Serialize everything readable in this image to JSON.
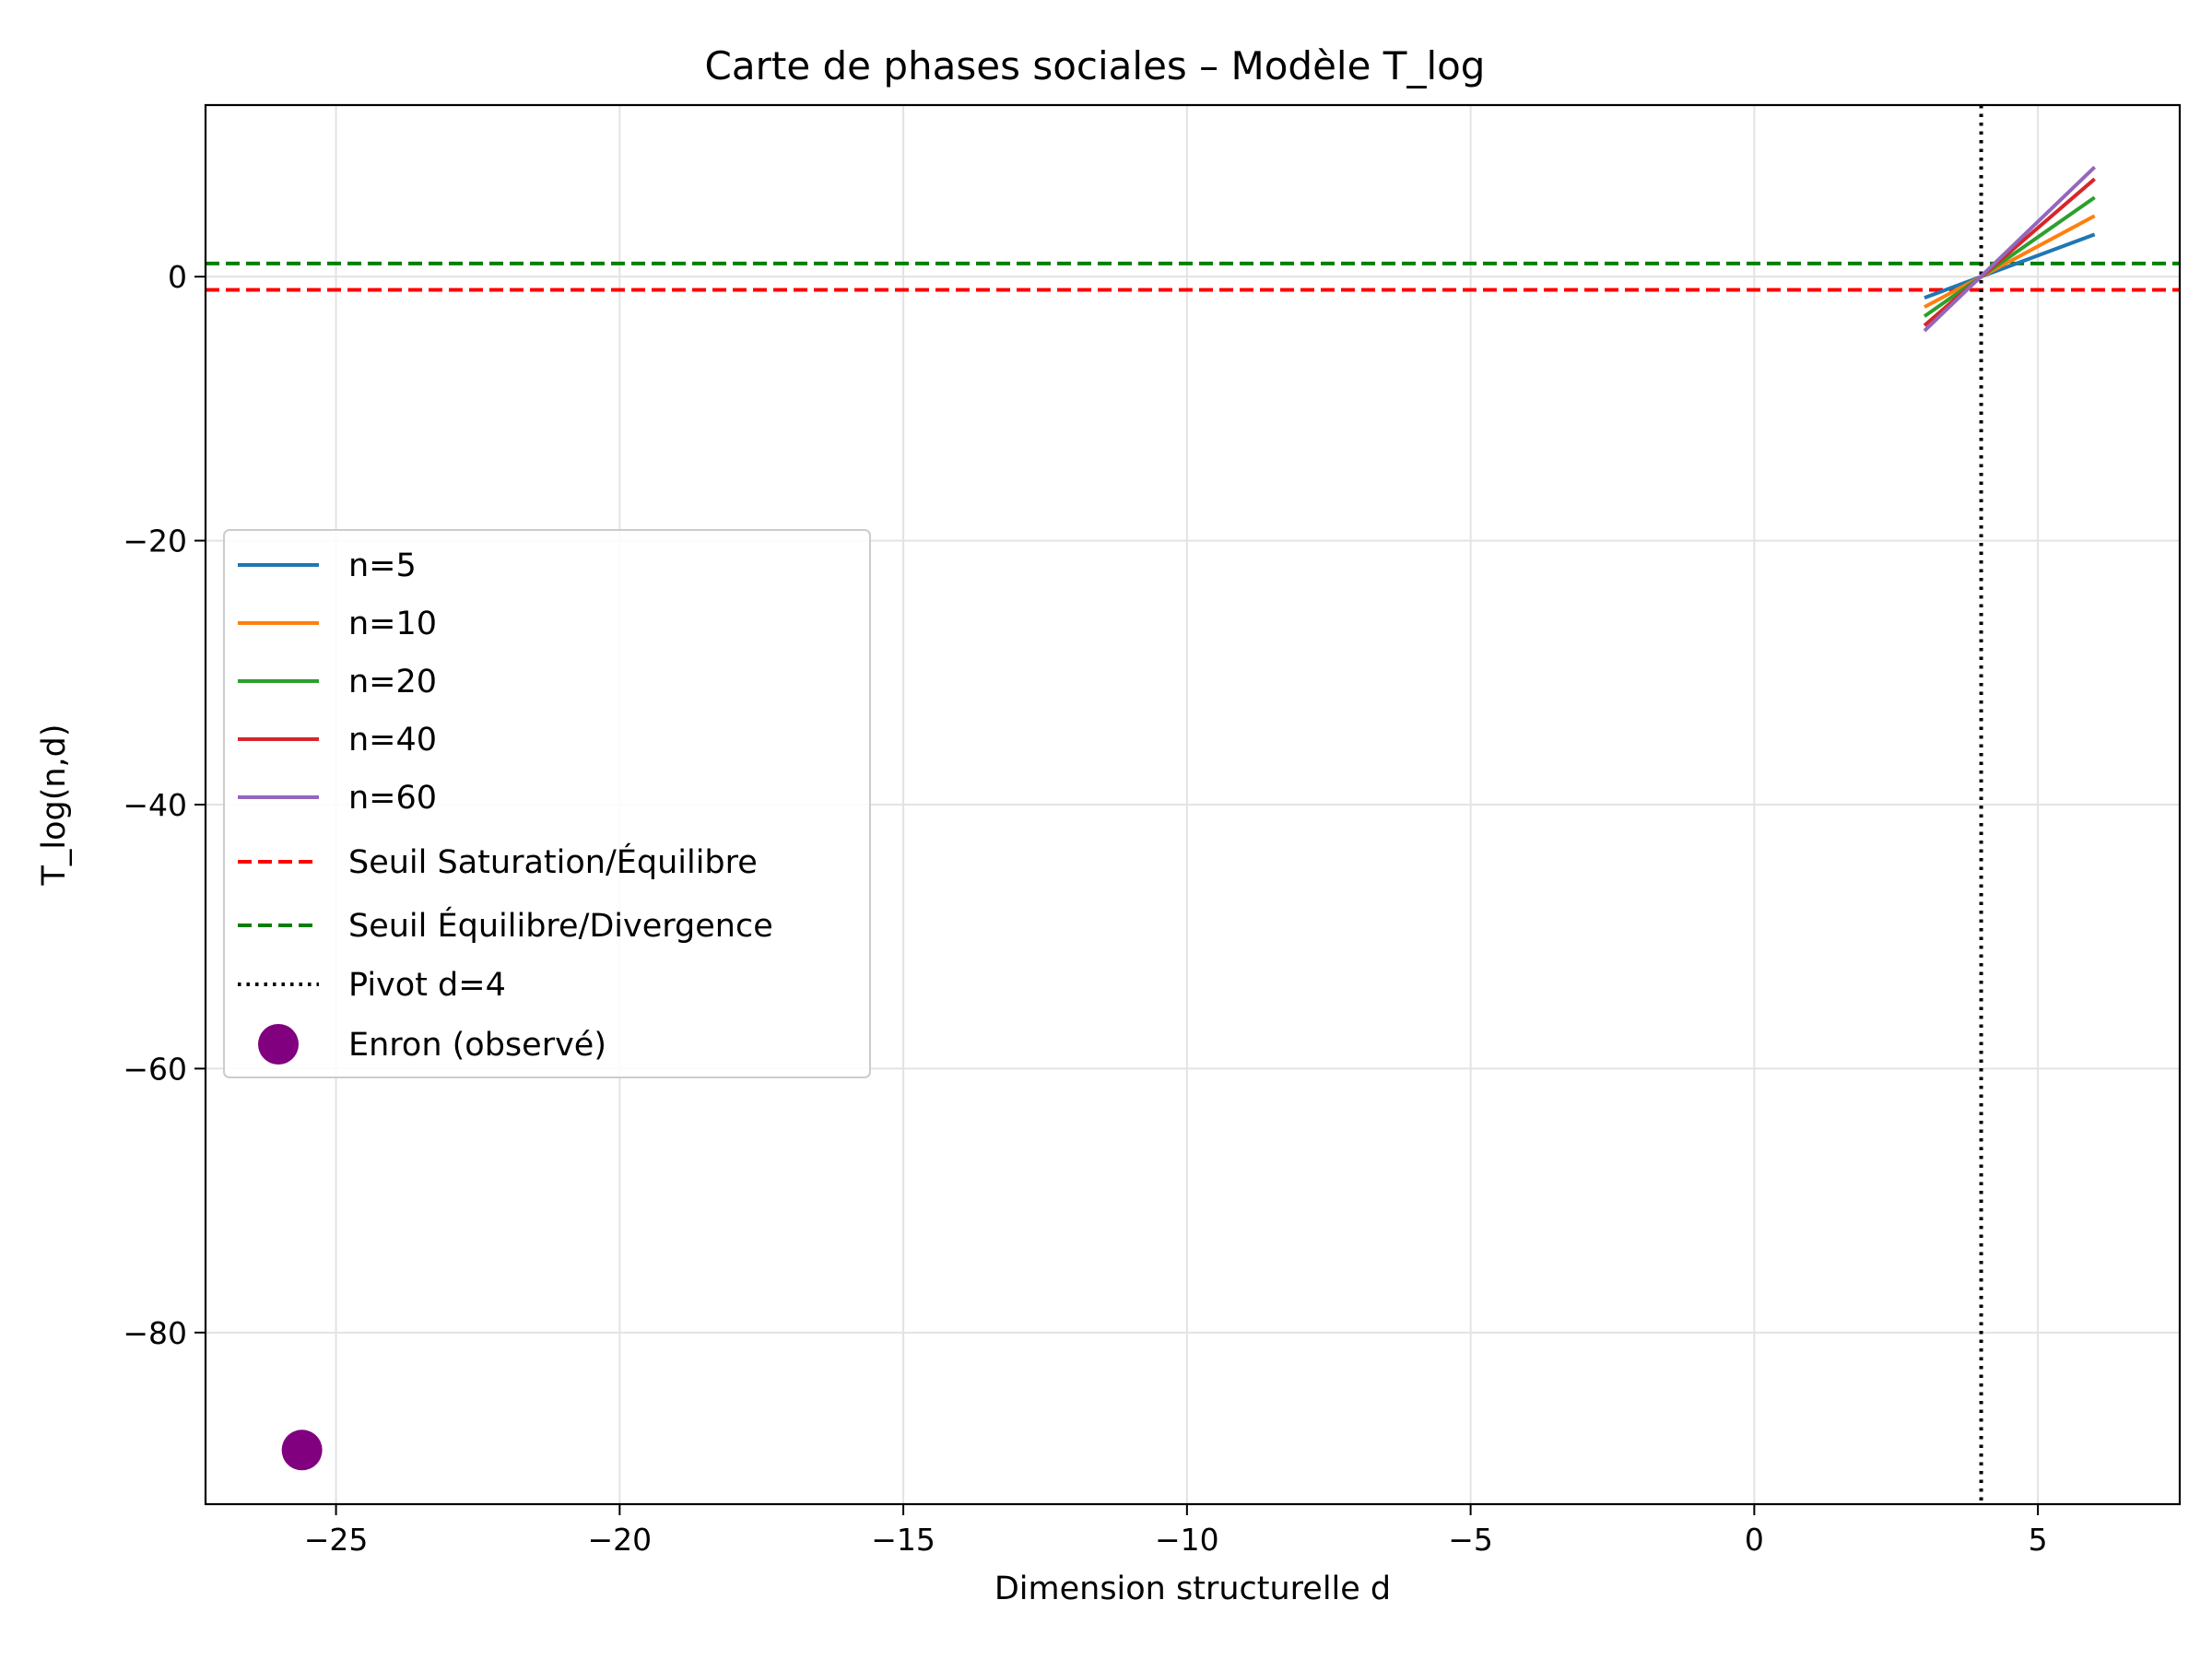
{
  "chart_data": {
    "type": "line",
    "title": "Carte de phases sociales – Modèle T_log",
    "xlabel": "Dimension structurelle d",
    "ylabel": "T_log(n,d)",
    "xlim": [
      -27.3,
      7.5
    ],
    "ylim": [
      -93.0,
      13.0
    ],
    "grid": true,
    "legend_position": "center-left",
    "x_ticks": [
      -25,
      -20,
      -15,
      -10,
      -5,
      0,
      5
    ],
    "y_ticks": [
      0,
      -20,
      -40,
      -60,
      -80
    ],
    "x_tick_labels": [
      "−25",
      "−20",
      "−15",
      "−10",
      "−5",
      "0",
      "5"
    ],
    "y_tick_labels": [
      "0",
      "−20",
      "−40",
      "−60",
      "−80"
    ],
    "series": [
      {
        "name": "n=5",
        "color": "#1f77b4",
        "x": [
          3,
          6
        ],
        "y": [
          -1.6,
          3.2
        ]
      },
      {
        "name": "n=10",
        "color": "#ff7f0e",
        "x": [
          3,
          6
        ],
        "y": [
          -2.3,
          4.6
        ]
      },
      {
        "name": "n=20",
        "color": "#2ca02c",
        "x": [
          3,
          6
        ],
        "y": [
          -3.0,
          6.0
        ]
      },
      {
        "name": "n=40",
        "color": "#d62728",
        "x": [
          3,
          6
        ],
        "y": [
          -3.7,
          7.4
        ]
      },
      {
        "name": "n=60",
        "color": "#9467bd",
        "x": [
          3,
          6
        ],
        "y": [
          -4.1,
          8.3
        ]
      }
    ],
    "thresholds": [
      {
        "name": "Seuil Saturation/Équilibre",
        "orientation": "horizontal",
        "value": -1,
        "color": "#ff0000",
        "style": "dashed"
      },
      {
        "name": "Seuil Équilibre/Divergence",
        "orientation": "horizontal",
        "value": 1,
        "color": "#008000",
        "style": "dashed"
      },
      {
        "name": "Pivot d=4",
        "orientation": "vertical",
        "value": 4,
        "color": "#000000",
        "style": "dotted"
      }
    ],
    "points": [
      {
        "name": "Enron (observé)",
        "color": "#800080",
        "x": -25.6,
        "y": -88.9
      }
    ]
  }
}
